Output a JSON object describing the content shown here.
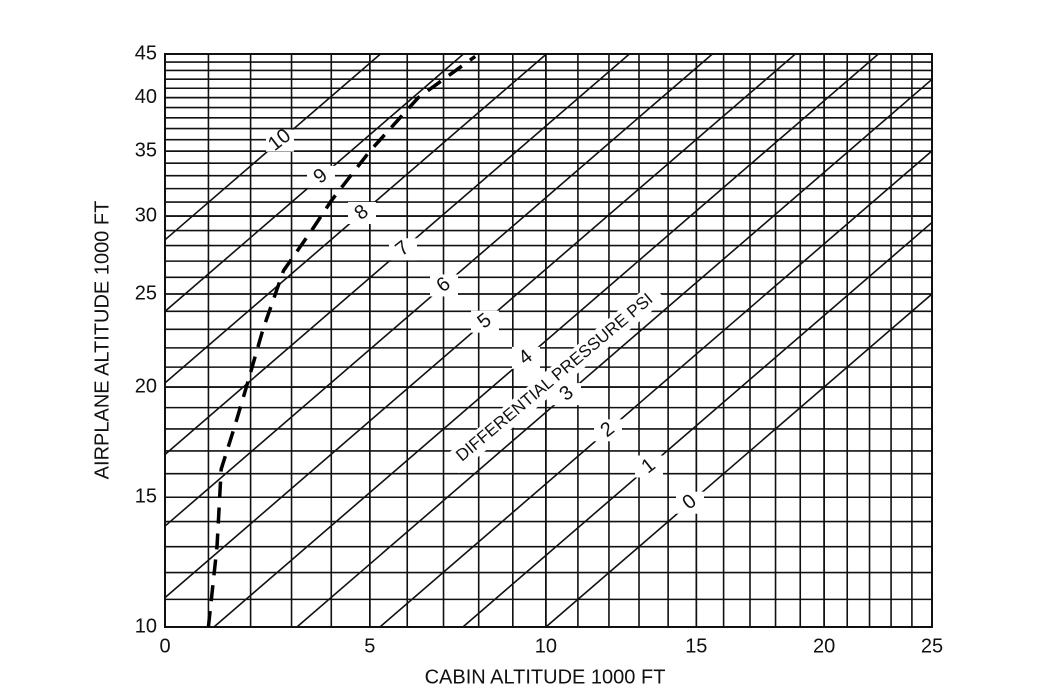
{
  "chart_data": {
    "type": "pressure-chart",
    "x_label": "CABIN  ALTITUDE  1000 FT",
    "y_label": "AIRPLANE  ALTITUDE  1000 FT",
    "annotation": "DIFFERENTIAL PRESSURE PSI",
    "xscale": "pressure",
    "yscale": "pressure",
    "xlim": [
      0,
      25
    ],
    "xticks": [
      0,
      5,
      10,
      15,
      20,
      25
    ],
    "ylim": [
      10,
      45
    ],
    "yticks": [
      10,
      15,
      20,
      25,
      30,
      35,
      40,
      45
    ],
    "grid": true,
    "minor_grid": true,
    "pressure_lines": [
      0,
      1,
      2,
      3,
      4,
      5,
      6,
      7,
      8,
      9,
      10
    ],
    "series": [
      {
        "style": "dashed",
        "color": "#000000",
        "x": [
          1.0,
          1.2,
          1.3,
          1.6,
          1.9,
          2.3,
          2.8,
          3.5,
          4.0,
          5.0,
          6.3,
          7.9
        ],
        "values": [
          10,
          13,
          16.2,
          18,
          20,
          23,
          26.4,
          29,
          31.1,
          35,
          40,
          44.7
        ]
      }
    ]
  }
}
